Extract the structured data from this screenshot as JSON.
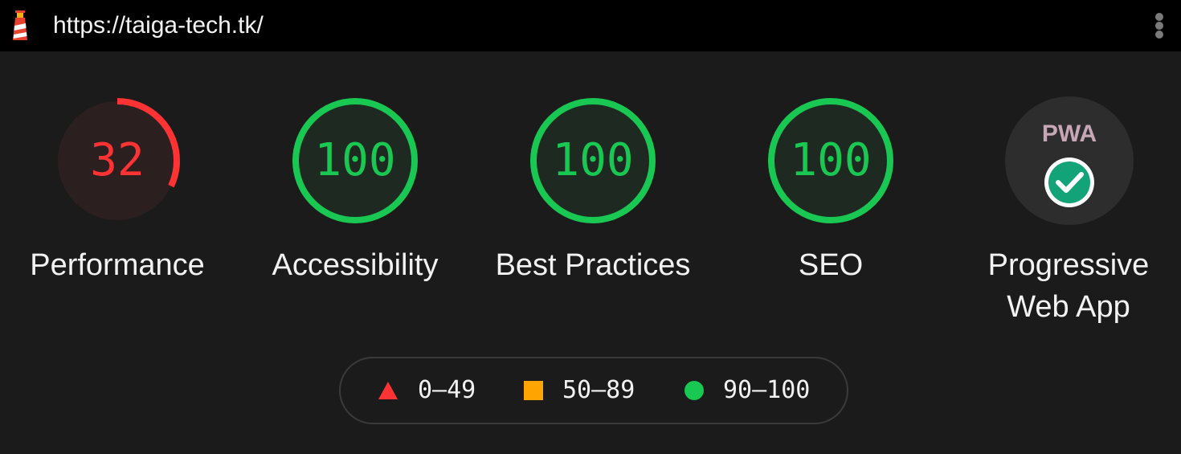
{
  "url_bar": {
    "url": "https://taiga-tech.tk/",
    "logo_icon": "lighthouse-icon",
    "menu_icon": "vertical-dots-icon"
  },
  "colors": {
    "fail": "#ff3333",
    "average": "#ffa400",
    "pass": "#18c853",
    "background": "#1b1b1b",
    "pwa_check": "#13a378"
  },
  "categories": [
    {
      "score": "32",
      "score_value": 32,
      "status": "fail",
      "label": "Performance"
    },
    {
      "score": "100",
      "score_value": 100,
      "status": "pass",
      "label": "Accessibility"
    },
    {
      "score": "100",
      "score_value": 100,
      "status": "pass",
      "label": "Best Practices"
    },
    {
      "score": "100",
      "score_value": 100,
      "status": "pass",
      "label": "SEO"
    }
  ],
  "pwa": {
    "badge_text": "PWA",
    "label_line1": "Progressive",
    "label_line2": "Web App",
    "icon": "checkmark-circle-icon"
  },
  "legend": [
    {
      "icon": "triangle-icon",
      "range": "0–49"
    },
    {
      "icon": "square-icon",
      "range": "50–89"
    },
    {
      "icon": "circle-icon",
      "range": "90–100"
    }
  ]
}
